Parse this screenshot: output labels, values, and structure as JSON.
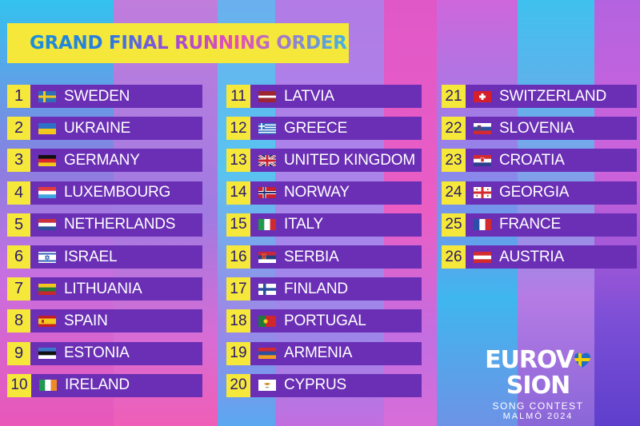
{
  "title": "GRAND FINAL RUNNING ORDER",
  "entries": [
    {
      "num": "1",
      "country": "SWEDEN",
      "flag": "sweden-flag-icon"
    },
    {
      "num": "2",
      "country": "UKRAINE",
      "flag": "ukraine-flag-icon"
    },
    {
      "num": "3",
      "country": "GERMANY",
      "flag": "germany-flag-icon"
    },
    {
      "num": "4",
      "country": "LUXEMBOURG",
      "flag": "luxembourg-flag-icon"
    },
    {
      "num": "5",
      "country": "NETHERLANDS",
      "flag": "netherlands-flag-icon"
    },
    {
      "num": "6",
      "country": "ISRAEL",
      "flag": "israel-flag-icon"
    },
    {
      "num": "7",
      "country": "LITHUANIA",
      "flag": "lithuania-flag-icon"
    },
    {
      "num": "8",
      "country": "SPAIN",
      "flag": "spain-flag-icon"
    },
    {
      "num": "9",
      "country": "ESTONIA",
      "flag": "estonia-flag-icon"
    },
    {
      "num": "10",
      "country": "IRELAND",
      "flag": "ireland-flag-icon"
    },
    {
      "num": "11",
      "country": "LATVIA",
      "flag": "latvia-flag-icon"
    },
    {
      "num": "12",
      "country": "GREECE",
      "flag": "greece-flag-icon"
    },
    {
      "num": "13",
      "country": "UNITED KINGDOM",
      "flag": "united-kingdom-flag-icon"
    },
    {
      "num": "14",
      "country": "NORWAY",
      "flag": "norway-flag-icon"
    },
    {
      "num": "15",
      "country": "ITALY",
      "flag": "italy-flag-icon"
    },
    {
      "num": "16",
      "country": "SERBIA",
      "flag": "serbia-flag-icon"
    },
    {
      "num": "17",
      "country": "FINLAND",
      "flag": "finland-flag-icon"
    },
    {
      "num": "18",
      "country": "PORTUGAL",
      "flag": "portugal-flag-icon"
    },
    {
      "num": "19",
      "country": "ARMENIA",
      "flag": "armenia-flag-icon"
    },
    {
      "num": "20",
      "country": "CYPRUS",
      "flag": "cyprus-flag-icon"
    },
    {
      "num": "21",
      "country": "SWITZERLAND",
      "flag": "switzerland-flag-icon"
    },
    {
      "num": "22",
      "country": "SLOVENIA",
      "flag": "slovenia-flag-icon"
    },
    {
      "num": "23",
      "country": "CROATIA",
      "flag": "croatia-flag-icon"
    },
    {
      "num": "24",
      "country": "GEORGIA",
      "flag": "georgia-flag-icon"
    },
    {
      "num": "25",
      "country": "FRANCE",
      "flag": "france-flag-icon"
    },
    {
      "num": "26",
      "country": "AUSTRIA",
      "flag": "austria-flag-icon"
    }
  ],
  "logo": {
    "word_left": "EUROV",
    "word_right": "SION",
    "line1": "SONG CONTEST",
    "line2": "MALMÖ 2024"
  },
  "colors": {
    "accent_yellow": "#f5e83a",
    "bar_purple": "#6a2fb5",
    "number_text": "#2b1a6b"
  }
}
